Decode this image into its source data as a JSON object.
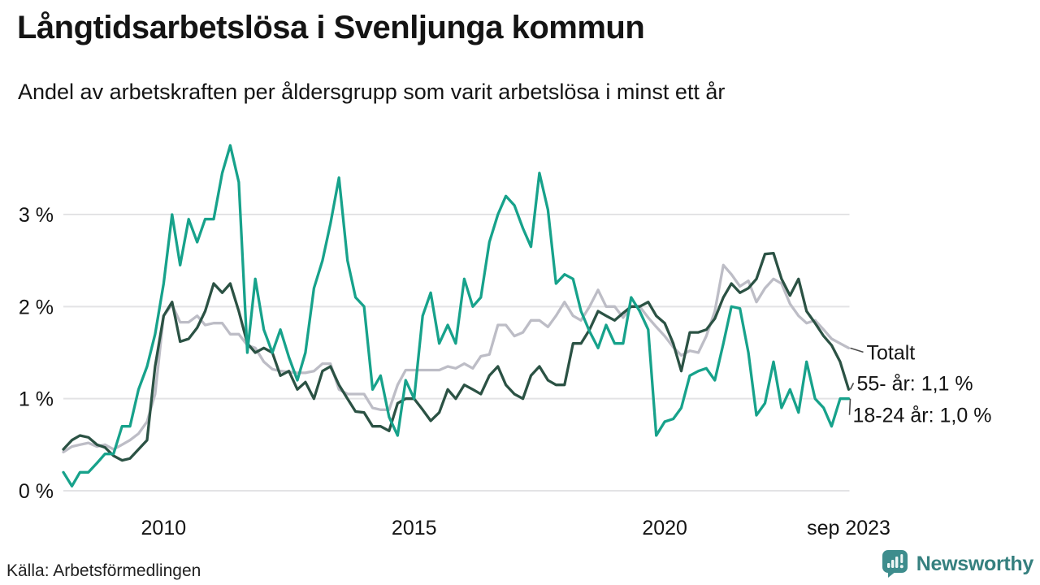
{
  "footer": {
    "source": "Källa: Arbetsförmedlingen"
  },
  "logo": {
    "text": "Newsworthy",
    "mark": "bar-chart-speech-bubble-icon",
    "color": "#3e8d8d",
    "text_color": "#36807f"
  },
  "chart_data": {
    "type": "line",
    "title": "Långtidsarbetslösa i Svenljunga kommun",
    "subtitle": "Andel av arbetskraften per åldersgrupp som varit arbetslösa i minst ett år",
    "xlabel": "",
    "ylabel": "",
    "y_unit": "%",
    "grid": "horizontal",
    "legend_position": "end-of-line-labels",
    "xlim": [
      2008,
      2023.75
    ],
    "ylim": [
      0,
      3.85
    ],
    "yticks": [
      {
        "value": 0,
        "label": "0 %"
      },
      {
        "value": 1,
        "label": "1 %"
      },
      {
        "value": 2,
        "label": "2 %"
      },
      {
        "value": 3,
        "label": "3 %"
      }
    ],
    "xticks": [
      {
        "year": 2010,
        "label": "2010"
      },
      {
        "year": 2015,
        "label": "2015"
      },
      {
        "year": 2020,
        "label": "2020"
      },
      {
        "year": 2023.67,
        "label": "sep 2023"
      }
    ],
    "x_years": [
      2008,
      2008.17,
      2008.33,
      2008.5,
      2008.67,
      2008.83,
      2009,
      2009.17,
      2009.33,
      2009.5,
      2009.67,
      2009.83,
      2010,
      2010.17,
      2010.33,
      2010.5,
      2010.67,
      2010.83,
      2011,
      2011.17,
      2011.33,
      2011.5,
      2011.67,
      2011.83,
      2012,
      2012.17,
      2012.33,
      2012.5,
      2012.67,
      2012.83,
      2013,
      2013.17,
      2013.33,
      2013.5,
      2013.67,
      2013.83,
      2014,
      2014.17,
      2014.33,
      2014.5,
      2014.67,
      2014.83,
      2015,
      2015.17,
      2015.33,
      2015.5,
      2015.67,
      2015.83,
      2016,
      2016.17,
      2016.33,
      2016.5,
      2016.67,
      2016.83,
      2017,
      2017.17,
      2017.33,
      2017.5,
      2017.67,
      2017.83,
      2018,
      2018.17,
      2018.33,
      2018.5,
      2018.67,
      2018.83,
      2019,
      2019.17,
      2019.33,
      2019.5,
      2019.67,
      2019.83,
      2020,
      2020.17,
      2020.33,
      2020.5,
      2020.67,
      2020.83,
      2021,
      2021.17,
      2021.33,
      2021.5,
      2021.67,
      2021.83,
      2022,
      2022.17,
      2022.33,
      2022.5,
      2022.67,
      2022.83,
      2023,
      2023.17,
      2023.33,
      2023.5,
      2023.67
    ],
    "series": [
      {
        "name": "Totalt",
        "end_label": "Totalt",
        "end_value_label": "",
        "color": "#bdbdc6",
        "values": [
          0.42,
          0.48,
          0.5,
          0.52,
          0.48,
          0.5,
          0.45,
          0.5,
          0.55,
          0.62,
          0.75,
          1.05,
          1.9,
          2.02,
          1.83,
          1.83,
          1.9,
          1.8,
          1.82,
          1.82,
          1.7,
          1.7,
          1.58,
          1.55,
          1.4,
          1.32,
          1.3,
          1.29,
          1.28,
          1.28,
          1.3,
          1.38,
          1.38,
          1.1,
          1.05,
          1.05,
          1.05,
          0.9,
          0.88,
          0.88,
          1.15,
          1.31,
          1.31,
          1.31,
          1.31,
          1.31,
          1.35,
          1.33,
          1.38,
          1.33,
          1.46,
          1.48,
          1.8,
          1.8,
          1.68,
          1.72,
          1.85,
          1.85,
          1.78,
          1.9,
          2.05,
          1.9,
          1.85,
          2.0,
          2.18,
          2.0,
          2.0,
          1.88,
          2.0,
          2.0,
          1.88,
          1.78,
          1.68,
          1.56,
          1.47,
          1.52,
          1.5,
          1.68,
          1.95,
          2.45,
          2.35,
          2.22,
          2.28,
          2.05,
          2.2,
          2.3,
          2.25,
          2.03,
          1.9,
          1.82,
          1.85,
          1.75,
          1.65,
          1.6,
          1.55
        ]
      },
      {
        "name": "55- år",
        "end_label": "55- år: 1,1 %",
        "end_value_label": "1,1 %",
        "color": "#2b5244",
        "values": [
          0.45,
          0.55,
          0.6,
          0.58,
          0.5,
          0.47,
          0.38,
          0.33,
          0.35,
          0.45,
          0.55,
          1.35,
          1.9,
          2.05,
          1.62,
          1.65,
          1.77,
          1.95,
          2.25,
          2.15,
          2.25,
          1.95,
          1.6,
          1.5,
          1.55,
          1.5,
          1.25,
          1.3,
          1.1,
          1.18,
          1.0,
          1.3,
          1.35,
          1.15,
          1.0,
          0.86,
          0.85,
          0.7,
          0.7,
          0.65,
          0.95,
          1.0,
          1.0,
          0.88,
          0.76,
          0.85,
          1.1,
          1.0,
          1.15,
          1.1,
          1.05,
          1.25,
          1.35,
          1.15,
          1.05,
          1.0,
          1.25,
          1.35,
          1.2,
          1.15,
          1.15,
          1.6,
          1.6,
          1.75,
          1.95,
          1.9,
          1.85,
          1.93,
          2.0,
          2.0,
          2.05,
          1.9,
          1.82,
          1.6,
          1.3,
          1.72,
          1.72,
          1.75,
          1.87,
          2.1,
          2.25,
          2.15,
          2.2,
          2.3,
          2.57,
          2.58,
          2.3,
          2.12,
          2.3,
          1.95,
          1.82,
          1.68,
          1.58,
          1.4,
          1.1
        ]
      },
      {
        "name": "18-24 år",
        "end_label": "18-24 år: 1,0 %",
        "end_value_label": "1,0 %",
        "color": "#17a28b",
        "values": [
          0.2,
          0.05,
          0.2,
          0.2,
          0.3,
          0.4,
          0.4,
          0.7,
          0.7,
          1.1,
          1.35,
          1.7,
          2.25,
          3.0,
          2.45,
          2.95,
          2.7,
          2.95,
          2.95,
          3.45,
          3.75,
          3.35,
          1.5,
          2.3,
          1.75,
          1.5,
          1.75,
          1.45,
          1.2,
          1.5,
          2.2,
          2.5,
          2.9,
          3.4,
          2.5,
          2.1,
          2.0,
          1.1,
          1.25,
          0.8,
          0.6,
          1.2,
          1.0,
          1.9,
          2.15,
          1.6,
          1.8,
          1.6,
          2.3,
          2.0,
          2.1,
          2.7,
          3.0,
          3.2,
          3.1,
          2.85,
          2.65,
          3.45,
          3.05,
          2.25,
          2.35,
          2.3,
          1.95,
          1.73,
          1.55,
          1.8,
          1.6,
          1.6,
          2.1,
          1.95,
          1.75,
          0.6,
          0.75,
          0.78,
          0.9,
          1.25,
          1.3,
          1.33,
          1.2,
          1.6,
          2.0,
          1.98,
          1.5,
          0.82,
          0.95,
          1.4,
          0.9,
          1.1,
          0.85,
          1.4,
          1.0,
          0.9,
          0.7,
          1.0,
          1.0
        ]
      }
    ]
  }
}
